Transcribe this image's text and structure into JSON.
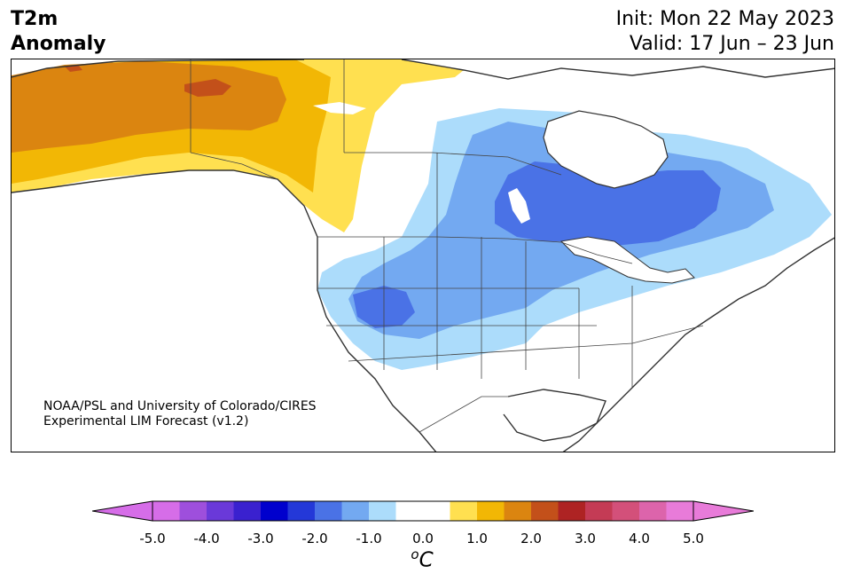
{
  "title": {
    "line1": "T2m",
    "line2": "Anomaly"
  },
  "dates": {
    "init": "Init: Mon 22 May 2023",
    "valid": "Valid: 17 Jun – 23 Jun"
  },
  "credit": {
    "line1": "NOAA/PSL and University of Colorado/CIRES",
    "line2": "Experimental LIM Forecast (v1.2)"
  },
  "colorbar": {
    "ticks": [
      "-5.0",
      "-4.0",
      "-3.0",
      "-2.0",
      "-1.0",
      "0.0",
      "1.0",
      "2.0",
      "3.0",
      "4.0",
      "5.0"
    ],
    "unit_sup": "o",
    "unit": "C",
    "colors": [
      "#d66de8",
      "#9e4fdc",
      "#6a39d9",
      "#3a21cf",
      "#0000cd",
      "#2438d8",
      "#4a72e6",
      "#73a9f1",
      "#acdcfb",
      "#ffffff",
      "#ffffff",
      "#ffe050",
      "#f2b705",
      "#db8510",
      "#c3501a",
      "#ae2323",
      "#c43b55",
      "#d3507a",
      "#dc64ab",
      "#e87bd9"
    ],
    "under_color": "#d66de8",
    "over_color": "#e87bd9"
  }
}
